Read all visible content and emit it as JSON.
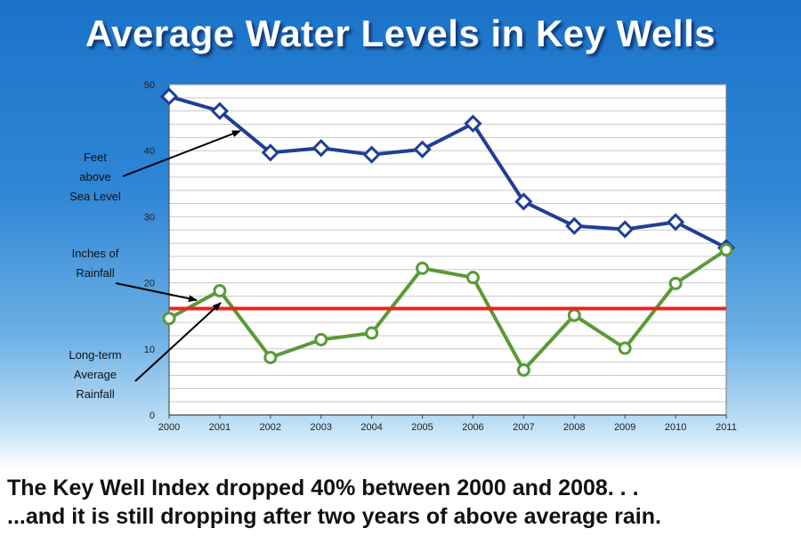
{
  "title": "Average Water Levels in Key Wells",
  "annotations": {
    "feet": [
      "Feet",
      "above",
      "Sea Level"
    ],
    "inches": [
      "Inches of",
      "Rainfall"
    ],
    "longterm": [
      "Long-term",
      "Average",
      "Rainfall"
    ]
  },
  "captions": {
    "line1": "The Key Well Index dropped 40% between 2000 and 2008. . .",
    "line2": "...and it is still dropping after two years of above average rain."
  },
  "colors": {
    "water": "#1f3f95",
    "rainfall": "#5a9a38",
    "average": "#e8251e",
    "arrow": "#000000"
  },
  "chart_data": {
    "type": "line",
    "title": "Average Water Levels in Key Wells",
    "x": [
      "2000",
      "2001",
      "2002",
      "2003",
      "2004",
      "2005",
      "2006",
      "2007",
      "2008",
      "2009",
      "2010",
      "2011"
    ],
    "ylim": [
      0,
      50
    ],
    "yticks": [
      0,
      10,
      20,
      30,
      40,
      50
    ],
    "grid": true,
    "series": [
      {
        "name": "Feet above Sea Level",
        "marker": "diamond",
        "values": [
          48.2,
          46.0,
          39.7,
          40.4,
          39.4,
          40.2,
          44.1,
          32.3,
          28.6,
          28.1,
          29.2,
          25.3
        ]
      },
      {
        "name": "Inches of Rainfall",
        "marker": "circle",
        "values": [
          14.6,
          18.8,
          8.7,
          11.4,
          12.4,
          22.2,
          20.8,
          6.8,
          15.1,
          10.1,
          19.9,
          25.0
        ]
      },
      {
        "name": "Long-term Average Rainfall",
        "marker": "none",
        "values": [
          16.1,
          16.1,
          16.1,
          16.1,
          16.1,
          16.1,
          16.1,
          16.1,
          16.1,
          16.1,
          16.1,
          16.1
        ]
      }
    ]
  }
}
